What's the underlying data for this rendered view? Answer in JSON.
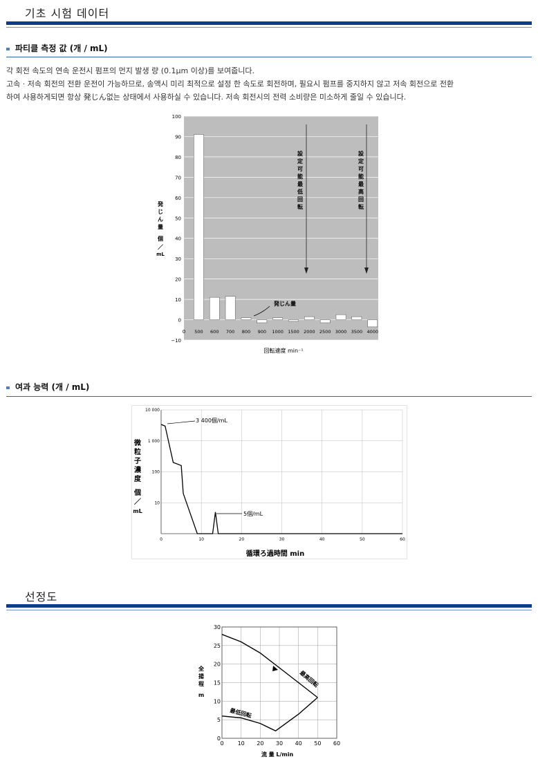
{
  "sections": {
    "basic": {
      "title": "기초 시험 데이터"
    },
    "selection": {
      "title": "선정도"
    }
  },
  "particle": {
    "heading": "파티클 측정 값 (개 / mL)",
    "desc": [
      "각 회전 속도의 연속 운전시 펌프의 먼지 발생 량 (0.1μm 이상)를 보여줍니다.",
      "고속 · 저속 회전의 전환 운전이 가능하므로, 송액시 미리 최적으로 설정 한 속도로 회전하며, 필요시 펌프를 중지하지 않고 저속 회전으로 전환",
      "하여 사용하게되면 항상 発じん없는 상태에서 사용하실 수 있습니다. 저속 회전시의 전력 소비량은 미소하게 줄일 수 있습니다."
    ]
  },
  "filtration": {
    "heading": "여과 능력 (개 / mL)"
  },
  "chart_data": [
    {
      "type": "bar",
      "categories": [
        "500",
        "600",
        "700",
        "800",
        "900",
        "1000",
        "1500",
        "2000",
        "2500",
        "3000",
        "3500",
        "4000"
      ],
      "values": [
        91,
        11,
        11.5,
        1,
        -1.5,
        1,
        -0.8,
        1.5,
        -1.5,
        2.5,
        1.5,
        -3.5
      ],
      "x_start_label": "0",
      "ylim": [
        -10,
        100
      ],
      "yticks": [
        "100",
        "90",
        "80",
        "70",
        "60",
        "50",
        "40",
        "30",
        "20",
        "10",
        "0",
        "−10"
      ],
      "ylabel": "発じん量 個/mL",
      "xlabel": "回転速度 min⁻¹",
      "annotations": [
        "発じん量",
        "設定可能最低回転",
        "設定可能最高回転"
      ],
      "grid": true
    },
    {
      "type": "line",
      "x": [
        0,
        1,
        3,
        5,
        5.5,
        9,
        9.5,
        11,
        12,
        12.8,
        13.5,
        14.2,
        15,
        60
      ],
      "y": [
        3400,
        3000,
        200,
        160,
        20,
        1,
        1,
        1,
        1,
        1,
        5,
        1,
        1,
        1
      ],
      "xlim": [
        0,
        60
      ],
      "ylim": [
        1,
        10000
      ],
      "y_scale": "log",
      "xticks": [
        "0",
        "10",
        "20",
        "30",
        "40",
        "50",
        "60"
      ],
      "yticks": [
        "10 000",
        "1 000",
        "100",
        "10"
      ],
      "ylabel": "微粒子濃度 個/mL",
      "xlabel": "循環ろ過時間 min",
      "annotations": [
        "3 400個/mL",
        "5個/mL"
      ],
      "grid": true
    },
    {
      "type": "line",
      "series": [
        {
          "name": "最高回転",
          "x": [
            0,
            10,
            20,
            30,
            40,
            50
          ],
          "y": [
            28,
            26,
            23,
            19,
            15,
            11
          ]
        },
        {
          "name": "最低回転",
          "x": [
            0,
            10,
            20,
            28,
            40,
            50
          ],
          "y": [
            6,
            5.5,
            4,
            2,
            6.5,
            11
          ]
        }
      ],
      "xlim": [
        0,
        60
      ],
      "ylim": [
        0,
        30
      ],
      "xticks": [
        "0",
        "10",
        "20",
        "30",
        "40",
        "50",
        "60"
      ],
      "yticks": [
        "30",
        "25",
        "20",
        "15",
        "10",
        "5",
        "0"
      ],
      "ylabel": "全揚程 m",
      "xlabel": "流 量 L/min",
      "grid": true
    }
  ]
}
